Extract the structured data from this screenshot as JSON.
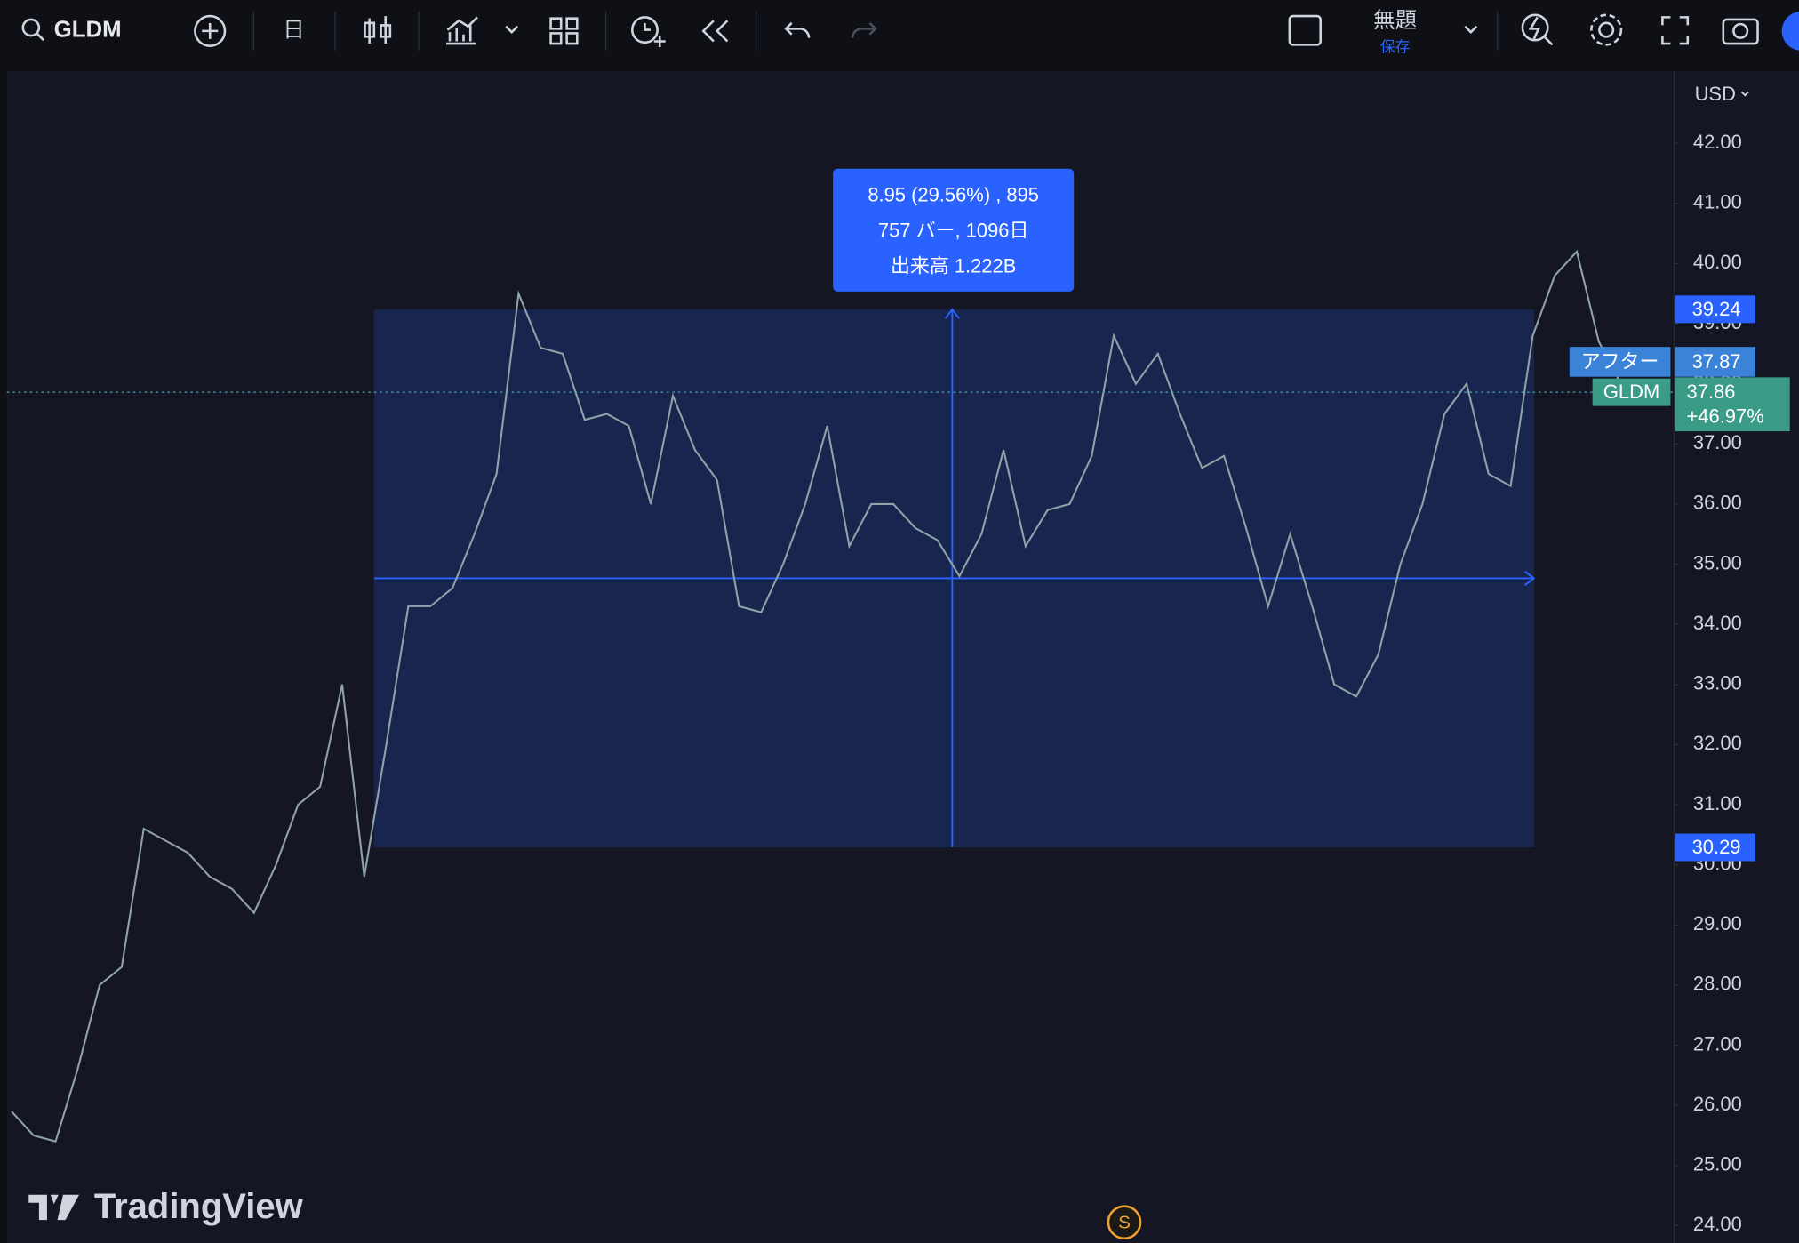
{
  "toolbar": {
    "symbol": "GLDM",
    "interval": "日",
    "layout_name": "無題",
    "save": "保存"
  },
  "chart_data": {
    "type": "line",
    "series": [
      {
        "name": "GLDM",
        "color": "#8fa3a8",
        "values": [
          25.9,
          25.5,
          25.4,
          26.6,
          28.0,
          28.3,
          30.6,
          30.4,
          30.2,
          29.8,
          29.6,
          29.2,
          30.0,
          31.0,
          31.3,
          33.0,
          29.8,
          32.0,
          34.3,
          34.3,
          34.6,
          35.5,
          36.5,
          39.5,
          38.6,
          38.5,
          37.4,
          37.5,
          37.3,
          36.0,
          37.8,
          36.9,
          36.4,
          34.3,
          34.2,
          35.0,
          36.0,
          37.3,
          35.3,
          36.0,
          36.0,
          35.6,
          35.4,
          34.8,
          35.5,
          36.9,
          35.3,
          35.9,
          36.0,
          36.8,
          38.8,
          38.0,
          38.5,
          37.5,
          36.6,
          36.8,
          35.6,
          34.3,
          35.5,
          34.3,
          33.0,
          32.8,
          33.5,
          35.0,
          36.0,
          37.5,
          38.0,
          36.5,
          36.3,
          38.8,
          39.8,
          40.2,
          38.7,
          38.0,
          37.86
        ]
      }
    ],
    "ylim": [
      23.71,
      43.2
    ],
    "yticks": [
      {
        "value": 24,
        "label": "24.00"
      },
      {
        "value": 25,
        "label": "25.00"
      },
      {
        "value": 26,
        "label": "26.00"
      },
      {
        "value": 27,
        "label": "27.00"
      },
      {
        "value": 28,
        "label": "28.00"
      },
      {
        "value": 29,
        "label": "29.00"
      },
      {
        "value": 30,
        "label": "30.00"
      },
      {
        "value": 31,
        "label": "31.00"
      },
      {
        "value": 32,
        "label": "32.00"
      },
      {
        "value": 33,
        "label": "33.00"
      },
      {
        "value": 34,
        "label": "34.00"
      },
      {
        "value": 35,
        "label": "35.00"
      },
      {
        "value": 36,
        "label": "36.00"
      },
      {
        "value": 37,
        "label": "37.00"
      },
      {
        "value": 38,
        "label": "38.00"
      },
      {
        "value": 39,
        "label": "39.00"
      },
      {
        "value": 40,
        "label": "40.00"
      },
      {
        "value": 41,
        "label": "41.00"
      },
      {
        "value": 42,
        "label": "42.00"
      }
    ],
    "currency": "USD",
    "measure": {
      "top": 39.24,
      "bottom": 30.29,
      "lines": [
        "8.95 (29.56%) , 895",
        "757 バー, 1096日",
        "出来高 1.222B"
      ]
    },
    "after_hours": {
      "label": "アフター",
      "price": 37.87
    },
    "last": {
      "price": 37.86,
      "change": "+46.97%"
    }
  },
  "watermark": "TradingView",
  "event_marker": "S"
}
